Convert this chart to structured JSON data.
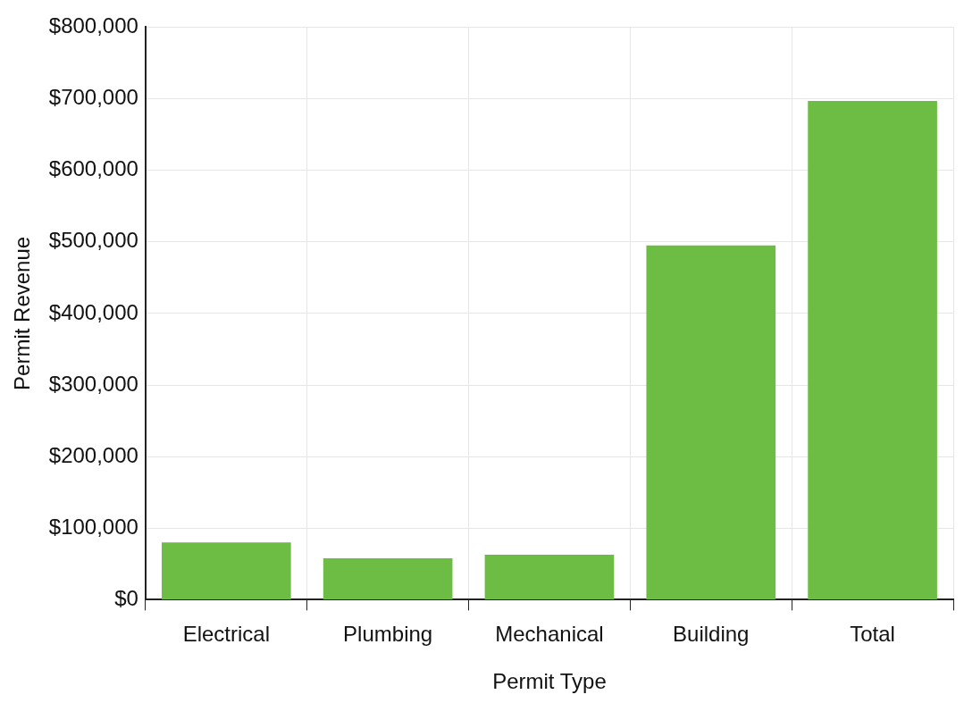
{
  "chart_data": {
    "type": "bar",
    "xlabel": "Permit Type",
    "ylabel": "Permit Revenue",
    "categories": [
      "Electrical",
      "Plumbing",
      "Mechanical",
      "Building",
      "Total"
    ],
    "values": [
      80000,
      58000,
      63000,
      495000,
      697000
    ],
    "color": "#6dbd45",
    "ylim": [
      0,
      800000
    ],
    "yticks": [
      {
        "value": 0,
        "label": "$0"
      },
      {
        "value": 100000,
        "label": "$100,000"
      },
      {
        "value": 200000,
        "label": "$200,000"
      },
      {
        "value": 300000,
        "label": "$300,000"
      },
      {
        "value": 400000,
        "label": "$400,000"
      },
      {
        "value": 500000,
        "label": "$500,000"
      },
      {
        "value": 600000,
        "label": "$600,000"
      },
      {
        "value": 700000,
        "label": "$700,000"
      },
      {
        "value": 800000,
        "label": "$800,000"
      }
    ],
    "grid": true
  }
}
